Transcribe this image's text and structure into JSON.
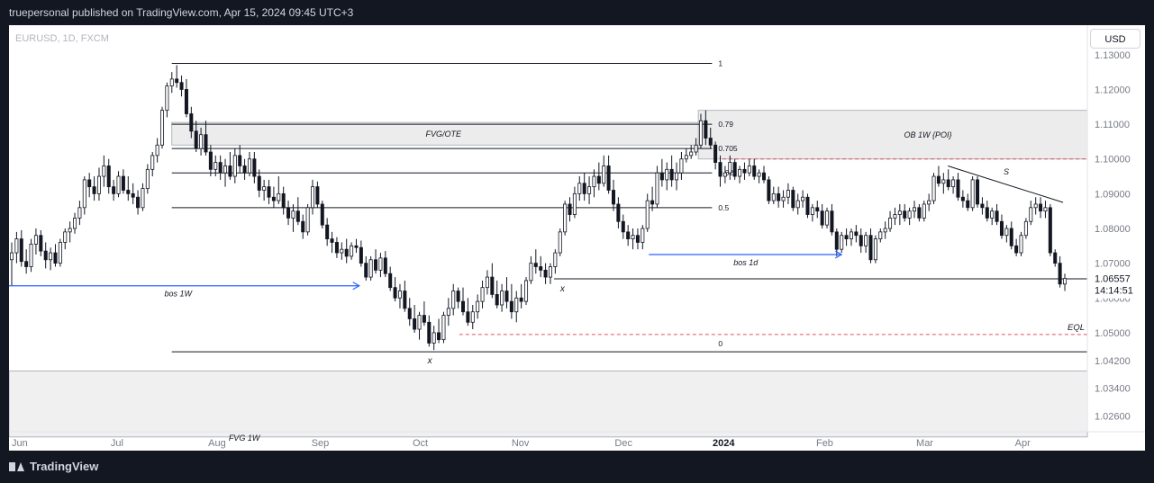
{
  "header": {
    "publish_text": "truepersonal published on TradingView.com, Apr 15, 2024 09:45 UTC+3"
  },
  "footer": {
    "brand": "TradingView"
  },
  "currency_button": "USD",
  "colors": {
    "background": "#131722",
    "panel": "#ffffff",
    "candle": "#131722",
    "blue_arrow": "#2962ff",
    "red_dash": "#e05260",
    "zone_fill": "#ececec"
  },
  "chart_data": {
    "type": "candlestick",
    "title": "EURUSD, 1D, FXCM",
    "ylim": [
      1.0215,
      1.1385
    ],
    "y_ticks": [
      "1.13000",
      "1.12000",
      "1.11000",
      "1.10000",
      "1.09000",
      "1.08000",
      "1.07000",
      "1.06000",
      "1.05000",
      "1.04200",
      "1.03400",
      "1.02600"
    ],
    "x_ticks": [
      "Jun",
      "Jul",
      "Aug",
      "Sep",
      "Oct",
      "Nov",
      "Dec",
      "2024",
      "Feb",
      "Mar",
      "Apr"
    ],
    "last_price": "1.06557",
    "countdown": "14:14:51",
    "ohlc": [
      [
        1.071,
        1.076,
        1.0635,
        1.073
      ],
      [
        1.073,
        1.079,
        1.07,
        1.077
      ],
      [
        1.077,
        1.0795,
        1.069,
        1.0705
      ],
      [
        1.0705,
        1.074,
        1.067,
        1.069
      ],
      [
        1.069,
        1.077,
        1.0675,
        1.0755
      ],
      [
        1.0755,
        1.08,
        1.0725,
        1.078
      ],
      [
        1.078,
        1.0795,
        1.072,
        1.0735
      ],
      [
        1.0735,
        1.076,
        1.0685,
        1.071
      ],
      [
        1.071,
        1.0745,
        1.068,
        1.073
      ],
      [
        1.073,
        1.0755,
        1.069,
        1.07
      ],
      [
        1.07,
        1.077,
        1.069,
        1.076
      ],
      [
        1.076,
        1.08,
        1.074,
        1.079
      ],
      [
        1.079,
        1.082,
        1.076,
        1.08
      ],
      [
        1.08,
        1.0845,
        1.0785,
        1.083
      ],
      [
        1.083,
        1.088,
        1.081,
        1.086
      ],
      [
        1.086,
        1.095,
        1.084,
        1.094
      ],
      [
        1.094,
        1.096,
        1.089,
        1.092
      ],
      [
        1.092,
        1.095,
        1.088,
        1.09
      ],
      [
        1.09,
        1.0975,
        1.088,
        1.095
      ],
      [
        1.095,
        1.101,
        1.092,
        1.098
      ],
      [
        1.098,
        1.1,
        1.09,
        1.092
      ],
      [
        1.092,
        1.094,
        1.088,
        1.09
      ],
      [
        1.09,
        1.0965,
        1.089,
        1.095
      ],
      [
        1.095,
        1.097,
        1.09,
        1.091
      ],
      [
        1.091,
        1.095,
        1.088,
        1.09
      ],
      [
        1.09,
        1.093,
        1.087,
        1.089
      ],
      [
        1.089,
        1.091,
        1.084,
        1.086
      ],
      [
        1.086,
        1.093,
        1.085,
        1.0915
      ],
      [
        1.0915,
        1.0985,
        1.09,
        1.097
      ],
      [
        1.097,
        1.102,
        1.095,
        1.101
      ],
      [
        1.101,
        1.106,
        1.099,
        1.104
      ],
      [
        1.104,
        1.115,
        1.103,
        1.114
      ],
      [
        1.114,
        1.122,
        1.112,
        1.121
      ],
      [
        1.121,
        1.125,
        1.119,
        1.123
      ],
      [
        1.123,
        1.127,
        1.1205,
        1.122
      ],
      [
        1.122,
        1.124,
        1.118,
        1.12
      ],
      [
        1.12,
        1.123,
        1.112,
        1.113
      ],
      [
        1.113,
        1.115,
        1.106,
        1.108
      ],
      [
        1.108,
        1.111,
        1.102,
        1.103
      ],
      [
        1.103,
        1.109,
        1.101,
        1.107
      ],
      [
        1.107,
        1.111,
        1.101,
        1.102
      ],
      [
        1.102,
        1.104,
        1.095,
        1.097
      ],
      [
        1.097,
        1.101,
        1.095,
        1.099
      ],
      [
        1.099,
        1.101,
        1.094,
        1.096
      ],
      [
        1.096,
        1.1,
        1.092,
        1.098
      ],
      [
        1.098,
        1.102,
        1.094,
        1.095
      ],
      [
        1.095,
        1.103,
        1.093,
        1.101
      ],
      [
        1.101,
        1.104,
        1.096,
        1.098
      ],
      [
        1.098,
        1.1,
        1.094,
        1.096
      ],
      [
        1.096,
        1.102,
        1.095,
        1.1
      ],
      [
        1.1,
        1.102,
        1.093,
        1.095
      ],
      [
        1.095,
        1.097,
        1.089,
        1.091
      ],
      [
        1.091,
        1.094,
        1.088,
        1.092
      ],
      [
        1.092,
        1.094,
        1.087,
        1.089
      ],
      [
        1.089,
        1.092,
        1.086,
        1.088
      ],
      [
        1.088,
        1.095,
        1.087,
        1.09
      ],
      [
        1.09,
        1.092,
        1.084,
        1.086
      ],
      [
        1.086,
        1.088,
        1.081,
        1.083
      ],
      [
        1.083,
        1.087,
        1.079,
        1.085
      ],
      [
        1.085,
        1.089,
        1.081,
        1.082
      ],
      [
        1.082,
        1.084,
        1.077,
        1.079
      ],
      [
        1.079,
        1.087,
        1.078,
        1.086
      ],
      [
        1.086,
        1.094,
        1.084,
        1.092
      ],
      [
        1.092,
        1.0935,
        1.086,
        1.087
      ],
      [
        1.087,
        1.088,
        1.08,
        1.081
      ],
      [
        1.081,
        1.083,
        1.075,
        1.077
      ],
      [
        1.077,
        1.079,
        1.073,
        1.076
      ],
      [
        1.076,
        1.0775,
        1.0715,
        1.073
      ],
      [
        1.073,
        1.076,
        1.071,
        1.074
      ],
      [
        1.074,
        1.077,
        1.07,
        1.072
      ],
      [
        1.072,
        1.076,
        1.071,
        1.075
      ],
      [
        1.075,
        1.077,
        1.073,
        1.0745
      ],
      [
        1.0745,
        1.0765,
        1.069,
        1.07
      ],
      [
        1.07,
        1.072,
        1.065,
        1.066
      ],
      [
        1.066,
        1.072,
        1.065,
        1.071
      ],
      [
        1.071,
        1.074,
        1.067,
        1.068
      ],
      [
        1.068,
        1.073,
        1.066,
        1.0715
      ],
      [
        1.0715,
        1.0735,
        1.066,
        1.067
      ],
      [
        1.067,
        1.069,
        1.062,
        1.063
      ],
      [
        1.063,
        1.066,
        1.059,
        1.06
      ],
      [
        1.06,
        1.064,
        1.057,
        1.062
      ],
      [
        1.062,
        1.065,
        1.056,
        1.057
      ],
      [
        1.057,
        1.06,
        1.052,
        1.054
      ],
      [
        1.054,
        1.058,
        1.05,
        1.051
      ],
      [
        1.051,
        1.056,
        1.048,
        1.055
      ],
      [
        1.055,
        1.059,
        1.052,
        1.053
      ],
      [
        1.053,
        1.055,
        1.046,
        1.047
      ],
      [
        1.047,
        1.052,
        1.045,
        1.05
      ],
      [
        1.05,
        1.054,
        1.047,
        1.048
      ],
      [
        1.048,
        1.056,
        1.047,
        1.055
      ],
      [
        1.055,
        1.06,
        1.052,
        1.057
      ],
      [
        1.057,
        1.064,
        1.055,
        1.062
      ],
      [
        1.062,
        1.063,
        1.057,
        1.059
      ],
      [
        1.059,
        1.063,
        1.055,
        1.056
      ],
      [
        1.056,
        1.06,
        1.052,
        1.053
      ],
      [
        1.053,
        1.058,
        1.051,
        1.056
      ],
      [
        1.056,
        1.061,
        1.054,
        1.059
      ],
      [
        1.059,
        1.065,
        1.057,
        1.063
      ],
      [
        1.063,
        1.068,
        1.061,
        1.066
      ],
      [
        1.066,
        1.07,
        1.06,
        1.061
      ],
      [
        1.061,
        1.065,
        1.057,
        1.058
      ],
      [
        1.058,
        1.064,
        1.056,
        1.062
      ],
      [
        1.062,
        1.066,
        1.057,
        1.059
      ],
      [
        1.059,
        1.064,
        1.054,
        1.056
      ],
      [
        1.056,
        1.062,
        1.053,
        1.06
      ],
      [
        1.06,
        1.064,
        1.057,
        1.059
      ],
      [
        1.059,
        1.066,
        1.058,
        1.065
      ],
      [
        1.065,
        1.072,
        1.064,
        1.07
      ],
      [
        1.07,
        1.074,
        1.067,
        1.069
      ],
      [
        1.069,
        1.072,
        1.066,
        1.068
      ],
      [
        1.068,
        1.07,
        1.064,
        1.066
      ],
      [
        1.066,
        1.07,
        1.064,
        1.069
      ],
      [
        1.069,
        1.074,
        1.067,
        1.073
      ],
      [
        1.073,
        1.08,
        1.072,
        1.079
      ],
      [
        1.079,
        1.088,
        1.078,
        1.087
      ],
      [
        1.087,
        1.089,
        1.082,
        1.084
      ],
      [
        1.084,
        1.092,
        1.083,
        1.09
      ],
      [
        1.09,
        1.095,
        1.088,
        1.093
      ],
      [
        1.093,
        1.096,
        1.088,
        1.09
      ],
      [
        1.09,
        1.095,
        1.087,
        1.092
      ],
      [
        1.092,
        1.097,
        1.089,
        1.095
      ],
      [
        1.095,
        1.099,
        1.091,
        1.093
      ],
      [
        1.093,
        1.101,
        1.092,
        1.098
      ],
      [
        1.098,
        1.101,
        1.09,
        1.091
      ],
      [
        1.091,
        1.094,
        1.085,
        1.087
      ],
      [
        1.087,
        1.089,
        1.08,
        1.082
      ],
      [
        1.082,
        1.084,
        1.077,
        1.079
      ],
      [
        1.079,
        1.081,
        1.075,
        1.077
      ],
      [
        1.077,
        1.08,
        1.074,
        1.078
      ],
      [
        1.078,
        1.08,
        1.074,
        1.076
      ],
      [
        1.076,
        1.081,
        1.074,
        1.08
      ],
      [
        1.08,
        1.09,
        1.079,
        1.088
      ],
      [
        1.088,
        1.092,
        1.085,
        1.087
      ],
      [
        1.087,
        1.098,
        1.086,
        1.096
      ],
      [
        1.096,
        1.1,
        1.092,
        1.094
      ],
      [
        1.094,
        1.099,
        1.091,
        1.097
      ],
      [
        1.097,
        1.101,
        1.092,
        1.094
      ],
      [
        1.094,
        1.099,
        1.091,
        1.096
      ],
      [
        1.096,
        1.102,
        1.094,
        1.1
      ],
      [
        1.1,
        1.103,
        1.099,
        1.101
      ],
      [
        1.101,
        1.104,
        1.1,
        1.102
      ],
      [
        1.102,
        1.106,
        1.101,
        1.104
      ],
      [
        1.104,
        1.113,
        1.103,
        1.111
      ],
      [
        1.111,
        1.114,
        1.104,
        1.106
      ],
      [
        1.106,
        1.109,
        1.103,
        1.104
      ],
      [
        1.104,
        1.105,
        1.097,
        1.099
      ],
      [
        1.099,
        1.101,
        1.092,
        1.095
      ],
      [
        1.095,
        1.098,
        1.093,
        1.096
      ],
      [
        1.096,
        1.101,
        1.094,
        1.099
      ],
      [
        1.099,
        1.1,
        1.094,
        1.095
      ],
      [
        1.095,
        1.098,
        1.093,
        1.097
      ],
      [
        1.097,
        1.099,
        1.094,
        1.096
      ],
      [
        1.096,
        1.1,
        1.095,
        1.098
      ],
      [
        1.098,
        1.1,
        1.094,
        1.095
      ],
      [
        1.095,
        1.097,
        1.093,
        1.096
      ],
      [
        1.096,
        1.098,
        1.093,
        1.094
      ],
      [
        1.094,
        1.095,
        1.087,
        1.088
      ],
      [
        1.088,
        1.092,
        1.087,
        1.09
      ],
      [
        1.09,
        1.092,
        1.086,
        1.088
      ],
      [
        1.088,
        1.091,
        1.086,
        1.089
      ],
      [
        1.089,
        1.093,
        1.087,
        1.091
      ],
      [
        1.091,
        1.092,
        1.085,
        1.086
      ],
      [
        1.086,
        1.09,
        1.084,
        1.088
      ],
      [
        1.088,
        1.091,
        1.086,
        1.089
      ],
      [
        1.089,
        1.09,
        1.083,
        1.084
      ],
      [
        1.084,
        1.087,
        1.082,
        1.086
      ],
      [
        1.086,
        1.088,
        1.083,
        1.085
      ],
      [
        1.085,
        1.087,
        1.08,
        1.081
      ],
      [
        1.081,
        1.086,
        1.08,
        1.085
      ],
      [
        1.085,
        1.087,
        1.078,
        1.079
      ],
      [
        1.079,
        1.08,
        1.072,
        1.074
      ],
      [
        1.074,
        1.079,
        1.073,
        1.078
      ],
      [
        1.078,
        1.08,
        1.075,
        1.077
      ],
      [
        1.077,
        1.08,
        1.075,
        1.079
      ],
      [
        1.079,
        1.081,
        1.076,
        1.078
      ],
      [
        1.078,
        1.08,
        1.073,
        1.075
      ],
      [
        1.075,
        1.079,
        1.073,
        1.078
      ],
      [
        1.078,
        1.08,
        1.07,
        1.071
      ],
      [
        1.071,
        1.078,
        1.07,
        1.077
      ],
      [
        1.077,
        1.08,
        1.076,
        1.079
      ],
      [
        1.079,
        1.082,
        1.077,
        1.08
      ],
      [
        1.08,
        1.085,
        1.079,
        1.083
      ],
      [
        1.083,
        1.086,
        1.081,
        1.084
      ],
      [
        1.084,
        1.087,
        1.081,
        1.085
      ],
      [
        1.085,
        1.087,
        1.082,
        1.083
      ],
      [
        1.083,
        1.086,
        1.081,
        1.085
      ],
      [
        1.085,
        1.088,
        1.083,
        1.086
      ],
      [
        1.086,
        1.087,
        1.082,
        1.083
      ],
      [
        1.083,
        1.088,
        1.082,
        1.087
      ],
      [
        1.087,
        1.09,
        1.085,
        1.088
      ],
      [
        1.088,
        1.096,
        1.087,
        1.095
      ],
      [
        1.095,
        1.098,
        1.092,
        1.093
      ],
      [
        1.093,
        1.096,
        1.09,
        1.094
      ],
      [
        1.094,
        1.097,
        1.091,
        1.092
      ],
      [
        1.092,
        1.095,
        1.09,
        1.094
      ],
      [
        1.094,
        1.096,
        1.088,
        1.089
      ],
      [
        1.089,
        1.091,
        1.086,
        1.088
      ],
      [
        1.088,
        1.09,
        1.085,
        1.086
      ],
      [
        1.086,
        1.095,
        1.085,
        1.094
      ],
      [
        1.094,
        1.095,
        1.086,
        1.087
      ],
      [
        1.087,
        1.089,
        1.084,
        1.086
      ],
      [
        1.086,
        1.088,
        1.082,
        1.083
      ],
      [
        1.083,
        1.086,
        1.081,
        1.085
      ],
      [
        1.085,
        1.087,
        1.081,
        1.082
      ],
      [
        1.082,
        1.084,
        1.077,
        1.078
      ],
      [
        1.078,
        1.081,
        1.076,
        1.08
      ],
      [
        1.08,
        1.082,
        1.074,
        1.075
      ],
      [
        1.075,
        1.077,
        1.072,
        1.073
      ],
      [
        1.073,
        1.079,
        1.072,
        1.078
      ],
      [
        1.078,
        1.083,
        1.077,
        1.082
      ],
      [
        1.082,
        1.088,
        1.081,
        1.086
      ],
      [
        1.086,
        1.089,
        1.084,
        1.087
      ],
      [
        1.087,
        1.089,
        1.083,
        1.085
      ],
      [
        1.085,
        1.088,
        1.083,
        1.086
      ],
      [
        1.086,
        1.087,
        1.072,
        1.073
      ],
      [
        1.073,
        1.074,
        1.069,
        1.07
      ],
      [
        1.07,
        1.072,
        1.063,
        1.064
      ],
      [
        1.064,
        1.067,
        1.062,
        1.0656
      ]
    ],
    "fib_levels": [
      {
        "label": "1",
        "value": 1.1275
      },
      {
        "label": "0.79",
        "value": 1.11
      },
      {
        "label": "0.705",
        "value": 1.103
      },
      {
        "label": "0.62",
        "value": 1.096
      },
      {
        "label": "0.5",
        "value": 1.086
      },
      {
        "label": "0",
        "value": 1.0445
      }
    ],
    "zones": [
      {
        "label": "FVG/OTE",
        "top": 1.1105,
        "bottom": 1.104
      },
      {
        "label": "OB 1W {POI}",
        "top": 1.114,
        "bottom": 1.1
      },
      {
        "label": "FVG 1W",
        "top": 1.039,
        "bottom": 1.02
      }
    ],
    "bos_labels": [
      "bos 1W",
      "bos 1d"
    ],
    "bos_levels": [
      1.0635,
      1.0725
    ],
    "swing_markers": [
      "x",
      "x"
    ],
    "liquidity_level": {
      "label": "EQL",
      "value": 1.0495
    },
    "support_line": 1.0655,
    "trendline_label": "S",
    "resistance_level": 1.1
  }
}
